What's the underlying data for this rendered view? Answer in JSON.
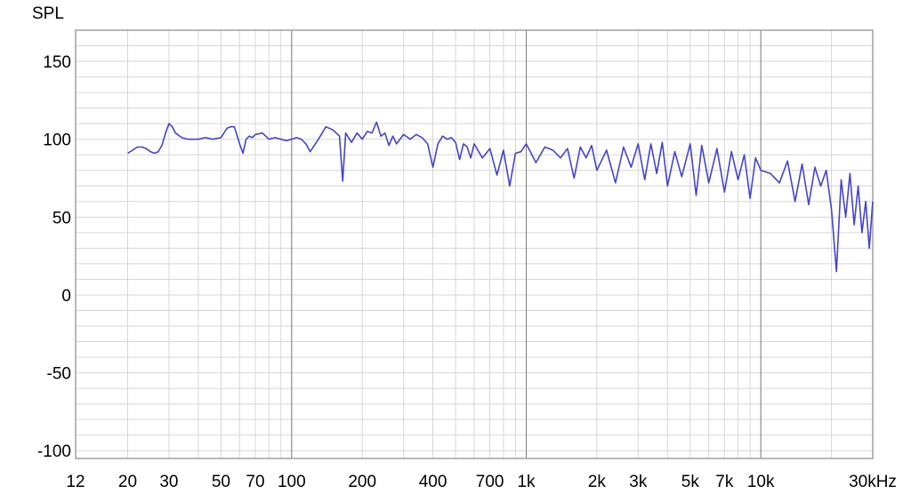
{
  "chart_data": {
    "type": "line",
    "ylabel": "SPL",
    "xscale": "log",
    "xlim": [
      12,
      30000
    ],
    "ylim": [
      -105,
      170
    ],
    "grid": true,
    "line_color": "#4444cc",
    "x_ticks": [
      {
        "value": 12,
        "label": "12"
      },
      {
        "value": 20,
        "label": "20"
      },
      {
        "value": 30,
        "label": "30"
      },
      {
        "value": 50,
        "label": "50"
      },
      {
        "value": 70,
        "label": "70"
      },
      {
        "value": 100,
        "label": "100"
      },
      {
        "value": 200,
        "label": "200"
      },
      {
        "value": 400,
        "label": "400"
      },
      {
        "value": 700,
        "label": "700"
      },
      {
        "value": 1000,
        "label": "1k"
      },
      {
        "value": 2000,
        "label": "2k"
      },
      {
        "value": 3000,
        "label": "3k"
      },
      {
        "value": 5000,
        "label": "5k"
      },
      {
        "value": 7000,
        "label": "7k"
      },
      {
        "value": 10000,
        "label": "10k"
      },
      {
        "value": 30000,
        "label": "30kHz"
      }
    ],
    "y_ticks": [
      {
        "value": 150,
        "label": "150"
      },
      {
        "value": 100,
        "label": "100"
      },
      {
        "value": 50,
        "label": "50"
      },
      {
        "value": 0,
        "label": "0"
      },
      {
        "value": -50,
        "label": "-50"
      },
      {
        "value": -100,
        "label": "-100"
      }
    ],
    "series": [
      {
        "x": [
          20,
          21,
          22,
          23,
          24,
          25,
          26,
          27,
          28,
          29,
          30,
          31,
          32,
          34,
          36,
          38,
          40,
          43,
          46,
          50,
          53,
          55,
          57,
          60,
          62,
          64,
          66,
          68,
          70,
          75,
          80,
          85,
          90,
          95,
          100,
          105,
          110,
          115,
          120,
          130,
          140,
          150,
          160,
          165,
          170,
          180,
          190,
          200,
          210,
          220,
          230,
          240,
          250,
          260,
          270,
          280,
          300,
          320,
          340,
          360,
          380,
          400,
          420,
          440,
          460,
          480,
          500,
          520,
          540,
          560,
          580,
          600,
          650,
          700,
          750,
          800,
          850,
          900,
          950,
          1000,
          1100,
          1200,
          1300,
          1400,
          1500,
          1600,
          1700,
          1800,
          1900,
          2000,
          2200,
          2400,
          2600,
          2800,
          3000,
          3200,
          3400,
          3600,
          3800,
          4000,
          4300,
          4600,
          5000,
          5300,
          5600,
          6000,
          6500,
          7000,
          7500,
          8000,
          8500,
          9000,
          9500,
          10000,
          11000,
          12000,
          13000,
          14000,
          15000,
          16000,
          17000,
          18000,
          19000,
          20000,
          21000,
          22000,
          23000,
          24000,
          25000,
          26000,
          27000,
          28000,
          29000,
          30000
        ],
        "y": [
          91,
          93,
          95,
          95,
          94,
          92,
          91,
          92,
          96,
          104,
          110,
          108,
          104,
          101,
          100,
          100,
          100,
          101,
          100,
          101,
          107,
          108,
          108,
          97,
          91,
          100,
          102,
          101,
          103,
          104,
          100,
          101,
          100,
          99,
          100,
          101,
          100,
          97,
          92,
          100,
          108,
          106,
          102,
          73,
          104,
          98,
          104,
          100,
          105,
          104,
          111,
          102,
          104,
          96,
          102,
          97,
          103,
          100,
          103,
          101,
          97,
          82,
          97,
          102,
          100,
          101,
          98,
          87,
          97,
          95,
          88,
          97,
          88,
          94,
          77,
          93,
          70,
          91,
          92,
          97,
          85,
          95,
          93,
          88,
          94,
          75,
          95,
          88,
          96,
          80,
          93,
          72,
          95,
          82,
          97,
          74,
          97,
          78,
          98,
          70,
          92,
          76,
          97,
          64,
          96,
          72,
          94,
          66,
          92,
          74,
          90,
          62,
          88,
          80,
          78,
          72,
          86,
          60,
          84,
          58,
          82,
          70,
          80,
          55,
          15,
          74,
          50,
          78,
          45,
          70,
          40,
          60,
          30,
          60
        ]
      }
    ]
  }
}
